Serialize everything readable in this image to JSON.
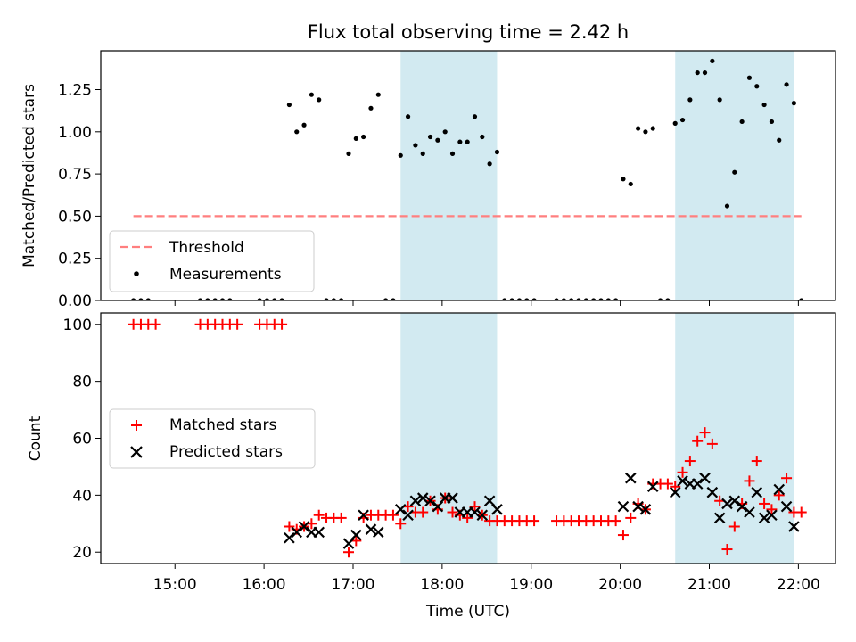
{
  "chart_data": {
    "type": "scatter",
    "title": "Flux total observing time = 2.42 h",
    "xlabel": "Time (UTC)",
    "x_unit": "hours UTC",
    "x_range": [
      "14:10",
      "22:25"
    ],
    "x_tick_labels": [
      "15:00",
      "16:00",
      "17:00",
      "18:00",
      "19:00",
      "20:00",
      "21:00",
      "22:00"
    ],
    "highlight_spans": [
      {
        "start": "17:32",
        "end": "18:37",
        "color": "#add8e6"
      },
      {
        "start": "20:37",
        "end": "21:57",
        "color": "#add8e6"
      }
    ],
    "top_panel": {
      "ylabel": "Matched/Predicted stars",
      "ylim": [
        0,
        1.48
      ],
      "y_tick_labels": [
        "0.00",
        "0.25",
        "0.50",
        "0.75",
        "1.00",
        "1.25"
      ],
      "legend_position": "lower-left",
      "threshold": {
        "name": "Threshold",
        "value": 0.5,
        "x_start": "14:32",
        "x_end": "22:02",
        "color": "#ff7f7f",
        "style": "dashed"
      },
      "series": [
        {
          "name": "Measurements",
          "color": "#000000",
          "marker": "dot",
          "points": [
            [
              "14:32",
              0
            ],
            [
              "14:37",
              0
            ],
            [
              "14:42",
              0
            ],
            [
              "15:17",
              0
            ],
            [
              "15:22",
              0
            ],
            [
              "15:27",
              0
            ],
            [
              "15:32",
              0
            ],
            [
              "15:37",
              0
            ],
            [
              "15:57",
              0
            ],
            [
              "16:02",
              0
            ],
            [
              "16:07",
              0
            ],
            [
              "16:12",
              0
            ],
            [
              "16:17",
              1.16
            ],
            [
              "16:22",
              1.0
            ],
            [
              "16:27",
              1.04
            ],
            [
              "16:32",
              1.22
            ],
            [
              "16:37",
              1.19
            ],
            [
              "16:42",
              0
            ],
            [
              "16:47",
              0
            ],
            [
              "16:52",
              0
            ],
            [
              "16:57",
              0.87
            ],
            [
              "17:02",
              0.96
            ],
            [
              "17:07",
              0.97
            ],
            [
              "17:12",
              1.14
            ],
            [
              "17:17",
              1.22
            ],
            [
              "17:22",
              0
            ],
            [
              "17:27",
              0
            ],
            [
              "17:32",
              0.86
            ],
            [
              "17:37",
              1.09
            ],
            [
              "17:42",
              0.92
            ],
            [
              "17:47",
              0.87
            ],
            [
              "17:52",
              0.97
            ],
            [
              "17:57",
              0.95
            ],
            [
              "18:02",
              1.0
            ],
            [
              "18:07",
              0.87
            ],
            [
              "18:12",
              0.94
            ],
            [
              "18:17",
              0.94
            ],
            [
              "18:22",
              1.09
            ],
            [
              "18:27",
              0.97
            ],
            [
              "18:32",
              0.81
            ],
            [
              "18:37",
              0.88
            ],
            [
              "18:42",
              0
            ],
            [
              "18:47",
              0
            ],
            [
              "18:52",
              0
            ],
            [
              "18:57",
              0
            ],
            [
              "19:02",
              0
            ],
            [
              "19:17",
              0
            ],
            [
              "19:22",
              0
            ],
            [
              "19:27",
              0
            ],
            [
              "19:32",
              0
            ],
            [
              "19:37",
              0
            ],
            [
              "19:42",
              0
            ],
            [
              "19:47",
              0
            ],
            [
              "19:52",
              0
            ],
            [
              "19:57",
              0
            ],
            [
              "20:02",
              0.72
            ],
            [
              "20:07",
              0.69
            ],
            [
              "20:12",
              1.02
            ],
            [
              "20:17",
              1.0
            ],
            [
              "20:22",
              1.02
            ],
            [
              "20:27",
              0
            ],
            [
              "20:32",
              0
            ],
            [
              "20:37",
              1.05
            ],
            [
              "20:42",
              1.07
            ],
            [
              "20:47",
              1.19
            ],
            [
              "20:52",
              1.35
            ],
            [
              "20:57",
              1.35
            ],
            [
              "21:02",
              1.42
            ],
            [
              "21:07",
              1.19
            ],
            [
              "21:12",
              0.56
            ],
            [
              "21:17",
              0.76
            ],
            [
              "21:22",
              1.06
            ],
            [
              "21:27",
              1.32
            ],
            [
              "21:32",
              1.27
            ],
            [
              "21:37",
              1.16
            ],
            [
              "21:42",
              1.06
            ],
            [
              "21:47",
              0.95
            ],
            [
              "21:52",
              1.28
            ],
            [
              "21:57",
              1.17
            ],
            [
              "22:02",
              0
            ]
          ]
        }
      ]
    },
    "bottom_panel": {
      "ylabel": "Count",
      "ylim": [
        16,
        104
      ],
      "y_tick_labels": [
        "20",
        "40",
        "60",
        "80",
        "100"
      ],
      "legend_position": "center-left",
      "series": [
        {
          "name": "Matched stars",
          "color": "#ff0000",
          "marker": "plus",
          "points": [
            [
              "14:32",
              100
            ],
            [
              "14:37",
              100
            ],
            [
              "14:42",
              100
            ],
            [
              "14:47",
              100
            ],
            [
              "15:17",
              100
            ],
            [
              "15:22",
              100
            ],
            [
              "15:27",
              100
            ],
            [
              "15:32",
              100
            ],
            [
              "15:37",
              100
            ],
            [
              "15:42",
              100
            ],
            [
              "15:57",
              100
            ],
            [
              "16:02",
              100
            ],
            [
              "16:07",
              100
            ],
            [
              "16:12",
              100
            ],
            [
              "16:17",
              29
            ],
            [
              "16:22",
              28
            ],
            [
              "16:27",
              29
            ],
            [
              "16:32",
              30
            ],
            [
              "16:37",
              33
            ],
            [
              "16:42",
              32
            ],
            [
              "16:47",
              32
            ],
            [
              "16:52",
              32
            ],
            [
              "16:57",
              20
            ],
            [
              "17:02",
              24
            ],
            [
              "17:07",
              32
            ],
            [
              "17:12",
              33
            ],
            [
              "17:17",
              33
            ],
            [
              "17:22",
              33
            ],
            [
              "17:27",
              33
            ],
            [
              "17:32",
              30
            ],
            [
              "17:37",
              36
            ],
            [
              "17:42",
              34
            ],
            [
              "17:47",
              34
            ],
            [
              "17:52",
              38
            ],
            [
              "17:57",
              35
            ],
            [
              "18:02",
              39
            ],
            [
              "18:07",
              34
            ],
            [
              "18:12",
              33
            ],
            [
              "18:17",
              32
            ],
            [
              "18:22",
              36
            ],
            [
              "18:27",
              33
            ],
            [
              "18:32",
              31
            ],
            [
              "18:37",
              31
            ],
            [
              "18:42",
              31
            ],
            [
              "18:47",
              31
            ],
            [
              "18:52",
              31
            ],
            [
              "18:57",
              31
            ],
            [
              "19:02",
              31
            ],
            [
              "19:17",
              31
            ],
            [
              "19:22",
              31
            ],
            [
              "19:27",
              31
            ],
            [
              "19:32",
              31
            ],
            [
              "19:37",
              31
            ],
            [
              "19:42",
              31
            ],
            [
              "19:47",
              31
            ],
            [
              "19:52",
              31
            ],
            [
              "19:57",
              31
            ],
            [
              "20:02",
              26
            ],
            [
              "20:07",
              32
            ],
            [
              "20:12",
              37
            ],
            [
              "20:17",
              35
            ],
            [
              "20:22",
              44
            ],
            [
              "20:27",
              44
            ],
            [
              "20:32",
              44
            ],
            [
              "20:37",
              43
            ],
            [
              "20:42",
              48
            ],
            [
              "20:47",
              52
            ],
            [
              "20:52",
              59
            ],
            [
              "20:57",
              62
            ],
            [
              "21:02",
              58
            ],
            [
              "21:07",
              38
            ],
            [
              "21:12",
              21
            ],
            [
              "21:17",
              29
            ],
            [
              "21:22",
              37
            ],
            [
              "21:27",
              45
            ],
            [
              "21:32",
              52
            ],
            [
              "21:37",
              37
            ],
            [
              "21:42",
              35
            ],
            [
              "21:47",
              40
            ],
            [
              "21:52",
              46
            ],
            [
              "21:57",
              34
            ],
            [
              "22:02",
              34
            ]
          ]
        },
        {
          "name": "Predicted stars",
          "color": "#000000",
          "marker": "x",
          "points": [
            [
              "16:17",
              25
            ],
            [
              "16:22",
              27
            ],
            [
              "16:27",
              29
            ],
            [
              "16:32",
              27
            ],
            [
              "16:37",
              27
            ],
            [
              "16:57",
              23
            ],
            [
              "17:02",
              26
            ],
            [
              "17:07",
              33
            ],
            [
              "17:12",
              28
            ],
            [
              "17:17",
              27
            ],
            [
              "17:32",
              35
            ],
            [
              "17:37",
              33
            ],
            [
              "17:42",
              38
            ],
            [
              "17:47",
              39
            ],
            [
              "17:52",
              38
            ],
            [
              "17:57",
              36
            ],
            [
              "18:02",
              39
            ],
            [
              "18:07",
              39
            ],
            [
              "18:12",
              34
            ],
            [
              "18:17",
              34
            ],
            [
              "18:22",
              34
            ],
            [
              "18:27",
              33
            ],
            [
              "18:32",
              38
            ],
            [
              "18:37",
              35
            ],
            [
              "20:02",
              36
            ],
            [
              "20:07",
              46
            ],
            [
              "20:12",
              36
            ],
            [
              "20:17",
              35
            ],
            [
              "20:22",
              43
            ],
            [
              "20:37",
              41
            ],
            [
              "20:42",
              45
            ],
            [
              "20:47",
              44
            ],
            [
              "20:52",
              44
            ],
            [
              "20:57",
              46
            ],
            [
              "21:02",
              41
            ],
            [
              "21:07",
              32
            ],
            [
              "21:12",
              37
            ],
            [
              "21:17",
              38
            ],
            [
              "21:22",
              36
            ],
            [
              "21:27",
              34
            ],
            [
              "21:32",
              41
            ],
            [
              "21:37",
              32
            ],
            [
              "21:42",
              33
            ],
            [
              "21:47",
              42
            ],
            [
              "21:52",
              36
            ],
            [
              "21:57",
              29
            ]
          ]
        }
      ]
    }
  }
}
